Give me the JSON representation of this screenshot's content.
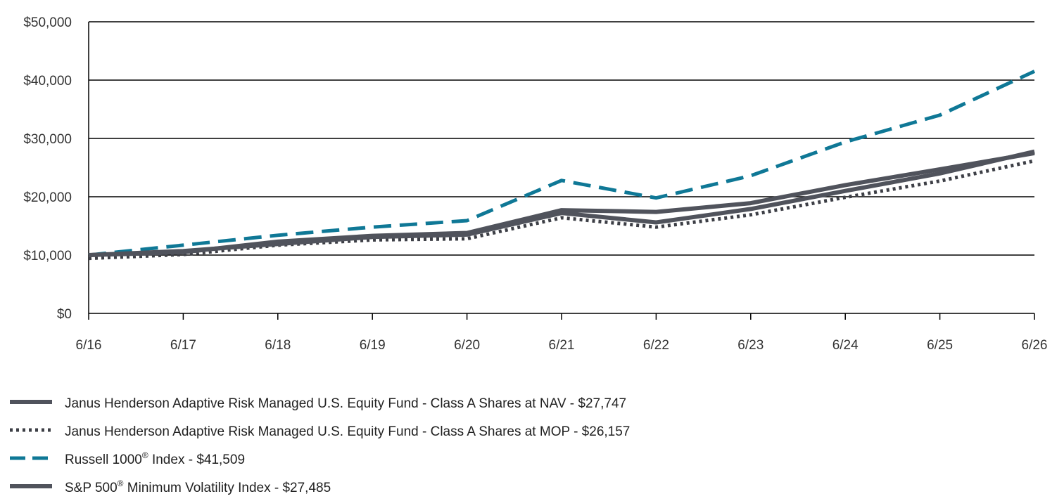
{
  "chart_data": {
    "type": "line",
    "title": "",
    "xlabel": "",
    "ylabel": "",
    "categories": [
      "6/16",
      "6/17",
      "6/18",
      "6/19",
      "6/20",
      "6/21",
      "6/22",
      "6/23",
      "6/24",
      "6/25",
      "6/26"
    ],
    "ylim": [
      0,
      50000
    ],
    "y_ticks": [
      0,
      10000,
      20000,
      30000,
      40000,
      50000
    ],
    "y_tick_labels": [
      "$0",
      "$10,000",
      "$20,000",
      "$30,000",
      "$40,000",
      "$50,000"
    ],
    "grid": "horizontal",
    "legend_position": "bottom-left",
    "series": [
      {
        "name": "Janus Henderson Adaptive Risk Managed U.S. Equity Fund - Class A Shares at NAV - $27,747",
        "legend_main": "Janus Henderson Adaptive Risk Managed U.S. Equity Fund - Class A Shares at NAV - $27,747",
        "legend_sup": "",
        "legend_tail": "",
        "style": "solid",
        "color": "#50535c",
        "values": [
          10000,
          10700,
          11900,
          13100,
          13500,
          17200,
          15600,
          17900,
          21000,
          24000,
          27747
        ]
      },
      {
        "name": "Janus Henderson Adaptive Risk Managed U.S. Equity Fund - Class A Shares at MOP - $26,157",
        "legend_main": "Janus Henderson Adaptive Risk Managed U.S. Equity Fund - Class A Shares at MOP - $26,157",
        "legend_sup": "",
        "legend_tail": "",
        "style": "dotted",
        "color": "#3d3f46",
        "values": [
          9430,
          10100,
          11700,
          12600,
          12800,
          16400,
          14800,
          16900,
          19900,
          22700,
          26157
        ]
      },
      {
        "name": "Russell 1000® Index - $41,509",
        "legend_main": "Russell 1000",
        "legend_sup": "®",
        "legend_tail": " Index - $41,509",
        "style": "dashed",
        "color": "#0f7896",
        "values": [
          10000,
          11700,
          13400,
          14800,
          15900,
          22800,
          19800,
          23600,
          29400,
          34000,
          41509
        ]
      },
      {
        "name": "S&P 500® Minimum Volatility Index - $27,485",
        "legend_main": "S&P 500",
        "legend_sup": "®",
        "legend_tail": " Minimum Volatility Index - $27,485",
        "style": "solid",
        "color": "#50535c",
        "values": [
          10000,
          10500,
          12300,
          13300,
          13800,
          17700,
          17400,
          18900,
          22000,
          24700,
          27485
        ]
      }
    ]
  }
}
